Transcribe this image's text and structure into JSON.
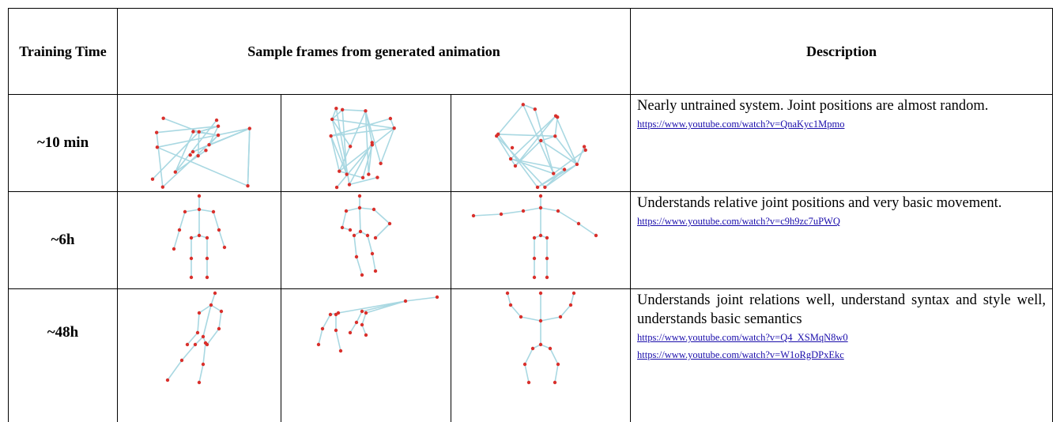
{
  "header": {
    "training_time": "Training Time",
    "sample_frames": "Sample frames from generated animation",
    "description": "Description"
  },
  "rows": [
    {
      "time": "~10 min",
      "description": "Nearly untrained system. Joint positions are almost random.",
      "links": [
        "https://www.youtube.com/watch?v=QnaKyc1Mpmo"
      ]
    },
    {
      "time": "~6h",
      "description": "Understands relative joint positions and very basic movement.",
      "links": [
        "https://www.youtube.com/watch?v=c9h9zc7uPWQ"
      ]
    },
    {
      "time": "~48h",
      "description": "Understands joint relations well, understand syntax and style well, understands basic semantics",
      "links": [
        "https://www.youtube.com/watch?v=Q4_XSMqN8w0",
        "https://www.youtube.com/watch?v=W1oRgDPxEkc"
      ]
    }
  ]
}
